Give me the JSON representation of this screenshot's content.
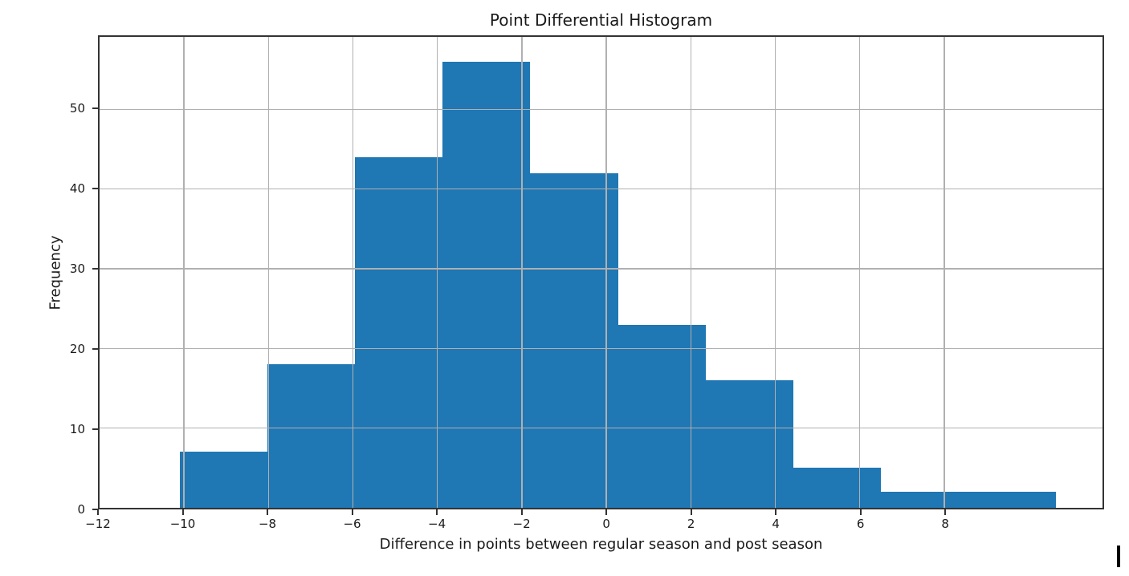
{
  "chart_data": {
    "type": "histogram",
    "title": "Point Differential Histogram",
    "xlabel": "Difference in points between regular season and post season",
    "ylabel": "Frequency",
    "bin_edges": [
      -10.1,
      -8.03,
      -5.95,
      -3.88,
      -1.8,
      0.28,
      2.35,
      4.43,
      6.5,
      8.58,
      10.65
    ],
    "counts": [
      7,
      18,
      44,
      56,
      42,
      23,
      16,
      5,
      2,
      2
    ],
    "total_observations": 215,
    "xlim": [
      -12,
      11.75
    ],
    "ylim": [
      0,
      59.1
    ],
    "xticks": [
      -12,
      -10,
      -8,
      -6,
      -4,
      -2,
      0,
      2,
      4,
      6,
      8
    ],
    "yticks": [
      0,
      10,
      20,
      30,
      40,
      50
    ],
    "grid": true,
    "grid_on_top_of_bars": true,
    "legend": "none",
    "bar_color": "#1f77b4",
    "grid_color": "#b0b0b0",
    "spine_color": "#333333",
    "text_color": "#1a1a1a",
    "background_color": "#ffffff"
  },
  "artifacts": {
    "text_cursor_visible": "true"
  }
}
